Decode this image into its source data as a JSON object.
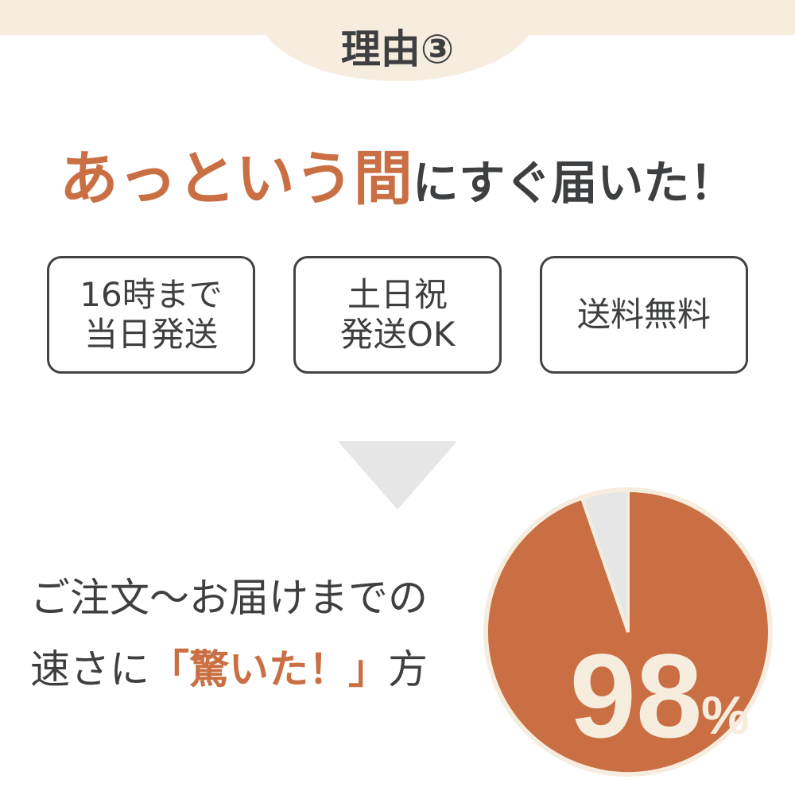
{
  "header": {
    "tag": "理由③"
  },
  "headline": {
    "accent": "あっという間",
    "rest": "にすぐ届いた！"
  },
  "features": [
    {
      "line1": "16時まで",
      "line2": "当日発送"
    },
    {
      "line1": "土日祝",
      "line2": "発送OK"
    },
    {
      "line1": "送料無料",
      "line2": ""
    }
  ],
  "statement": {
    "line1": "ご注文〜お届けまでの",
    "line2_pre": "速さに",
    "line2_accent": "「驚いた！」",
    "line2_post": "方"
  },
  "pie": {
    "value_percent": 98,
    "value_label": "98",
    "unit": "%",
    "colors": {
      "main": "#c96f43",
      "rest": "#e6e6e6",
      "border": "#f6eddf",
      "text": "#f6eddf"
    }
  }
}
